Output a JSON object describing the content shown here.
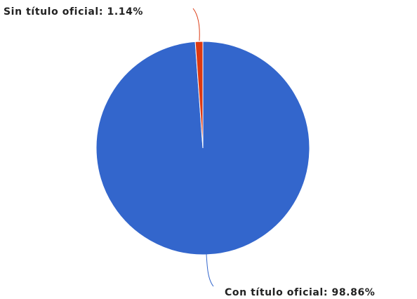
{
  "chart_data": {
    "type": "pie",
    "title": "",
    "slices": [
      {
        "label": "Con título oficial",
        "value": 98.86,
        "value_text": "98.86%",
        "color": "#3366cc"
      },
      {
        "label": "Sin título oficial",
        "value": 1.14,
        "value_text": "1.14%",
        "color": "#dc3912"
      }
    ],
    "legend": "none",
    "labels": {
      "con": "Con título oficial: 98.86%",
      "sin": "Sin título oficial: 1.14%"
    }
  }
}
